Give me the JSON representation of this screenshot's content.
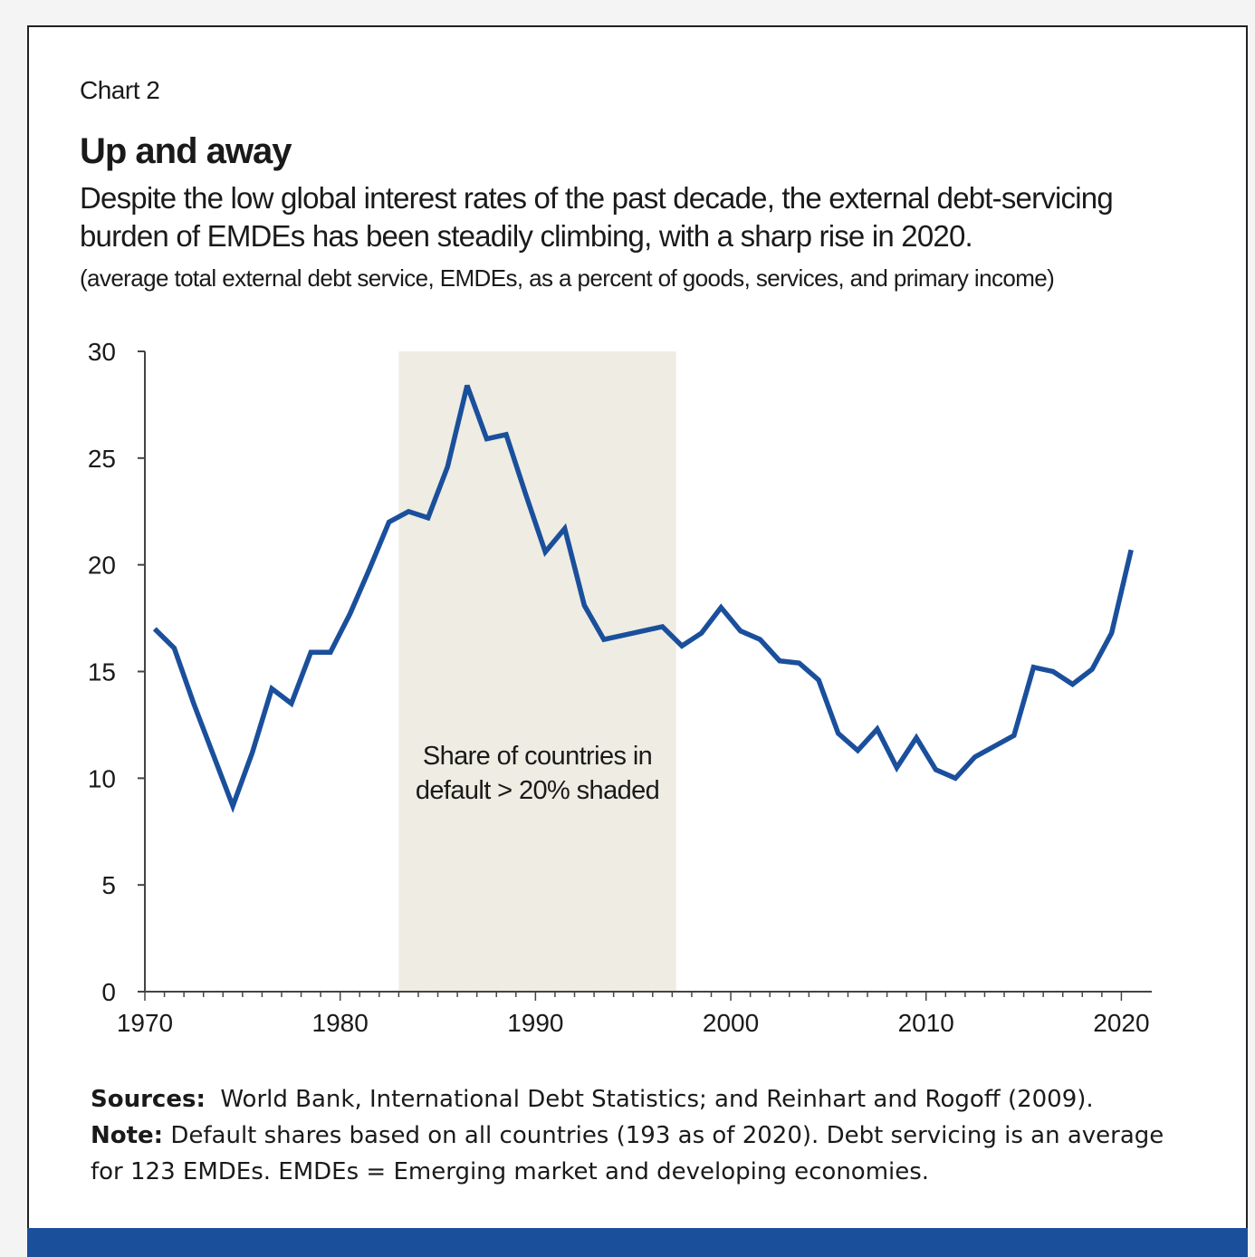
{
  "header": {
    "label": "Chart 2",
    "title": "Up and away",
    "subtitle": "Despite the low global interest rates of the past decade, the external debt-servicing burden of EMDEs has been steadily climbing, with a sharp rise in 2020.",
    "units": "(average total external debt service, EMDEs, as a percent of goods, services, and primary income)"
  },
  "chart_data": {
    "type": "line",
    "xlim": [
      1970,
      2021
    ],
    "ylim": [
      0,
      30
    ],
    "x_ticks": [
      1970,
      1980,
      1990,
      2000,
      2010,
      2020
    ],
    "y_ticks": [
      0,
      5,
      10,
      15,
      20,
      25,
      30
    ],
    "grid": false,
    "line_color": "#1a4f9c",
    "shade_color": "#eeece3",
    "shaded_region": {
      "x_start": 1983,
      "x_end": 1997.2
    },
    "annotation": [
      "Share of countries in",
      "default > 20% shaded"
    ],
    "x": [
      1970.5,
      1971.5,
      1972.5,
      1973.5,
      1974.5,
      1975.5,
      1976.5,
      1977.5,
      1978.5,
      1979.5,
      1980.5,
      1981.5,
      1982.5,
      1983.5,
      1984.5,
      1985.5,
      1986.5,
      1987.5,
      1988.5,
      1989.5,
      1990.5,
      1991.5,
      1992.5,
      1993.5,
      1994.5,
      1995.5,
      1996.5,
      1997.5,
      1998.5,
      1999.5,
      2000.5,
      2001.5,
      2002.5,
      2003.5,
      2004.5,
      2005.5,
      2006.5,
      2007.5,
      2008.5,
      2009.5,
      2010.5,
      2011.5,
      2012.5,
      2013.5,
      2014.5,
      2015.5,
      2016.5,
      2017.5,
      2018.5,
      2019.5,
      2020.5
    ],
    "values": [
      17.0,
      16.1,
      13.5,
      11.1,
      8.7,
      11.2,
      14.2,
      13.5,
      15.9,
      15.9,
      17.7,
      19.8,
      22.0,
      22.5,
      22.2,
      24.6,
      28.4,
      25.9,
      26.1,
      23.3,
      20.6,
      21.7,
      18.1,
      16.5,
      16.7,
      16.9,
      17.1,
      16.2,
      16.8,
      18.0,
      16.9,
      16.5,
      15.5,
      15.4,
      14.6,
      12.1,
      11.3,
      12.3,
      10.5,
      11.9,
      10.4,
      10.0,
      11.0,
      11.5,
      12.0,
      15.2,
      15.0,
      14.4,
      15.1,
      16.8,
      20.7
    ]
  },
  "footer": {
    "sources_label": "Sources:",
    "sources_text": "World Bank, International Debt Statistics; and Reinhart and Rogoff (2009).",
    "note_label": "Note:",
    "note_text": "Default shares based on all countries (193 as of 2020). Debt servicing is an average for 123 EMDEs. EMDEs = Emerging market and developing economies."
  }
}
